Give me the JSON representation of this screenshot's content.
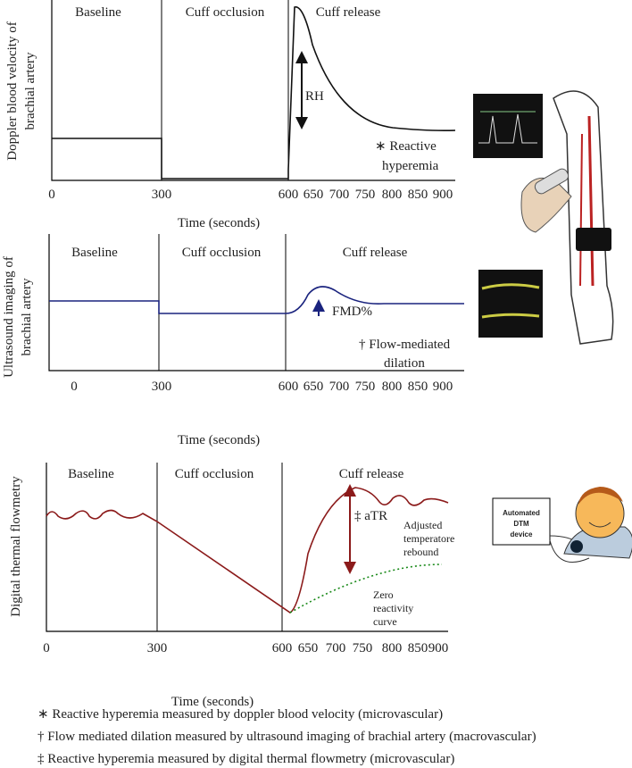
{
  "panels": [
    {
      "y_label_lines": [
        "Doppler blood velocity of",
        "brachial artery"
      ],
      "phases": [
        "Baseline",
        "Cuff occlusion",
        "Cuff release"
      ],
      "ticks": [
        0,
        300,
        600,
        650,
        700,
        750,
        800,
        850,
        900
      ],
      "x_label": "Time (seconds)",
      "annotations": [
        "RH",
        "∗ Reactive",
        "hyperemia"
      ]
    },
    {
      "y_label_lines": [
        "Ultrasound imaging of",
        "brachial artery"
      ],
      "phases": [
        "Baseline",
        "Cuff occlusion",
        "Cuff release"
      ],
      "ticks": [
        0,
        300,
        600,
        650,
        700,
        750,
        800,
        850,
        900
      ],
      "x_label": "Time (seconds)",
      "annotations": [
        "FMD%",
        "† Flow-mediated",
        "dilation"
      ]
    },
    {
      "y_label_lines": [
        "Digital thermal flowmetry"
      ],
      "phases": [
        "Baseline",
        "Cuff occlusion",
        "Cuff release"
      ],
      "ticks": [
        0,
        300,
        600,
        650,
        700,
        750,
        800,
        850,
        900
      ],
      "x_label": "Time (seconds)",
      "annotations": [
        "‡ aTR",
        "Adjusted",
        "temperatore",
        "rebound",
        "Zero",
        "reactivity",
        "curve"
      ]
    }
  ],
  "device_label": [
    "Automated",
    "DTM",
    "device"
  ],
  "footnotes": [
    "∗ Reactive hyperemia measured by doppler blood velocity (microvascular)",
    "† Flow mediated dilation measured by ultrasound imaging of brachial artery (macrovascular)",
    "‡ Reactive hyperemia measured by digital thermal flowmetry (microvascular)"
  ]
}
